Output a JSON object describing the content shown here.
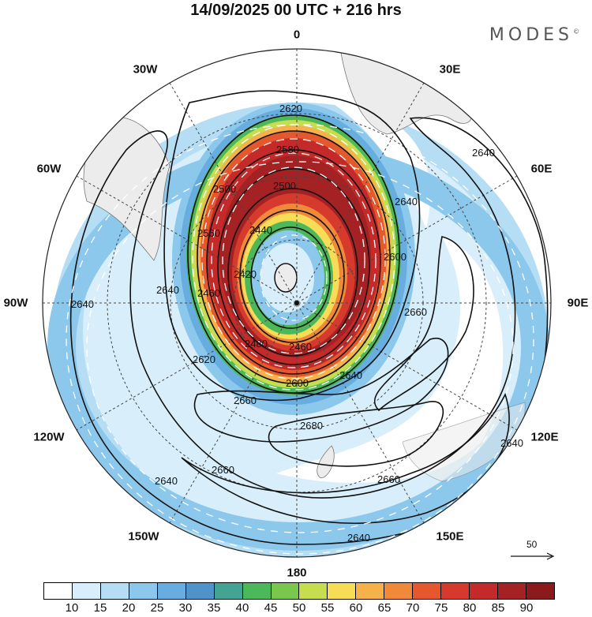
{
  "header": {
    "title": "14/09/2025  00 UTC  + 216 hrs",
    "brand": "MODES",
    "brand_mark": "©"
  },
  "longitude_labels": {
    "top": "0",
    "top_right": "30E",
    "right_upper": "60E",
    "right": "90E",
    "right_lower": "120E",
    "bottom_right": "150E",
    "bottom": "180",
    "bottom_left": "150W",
    "left_lower": "120W",
    "left": "90W",
    "left_upper": "60W",
    "top_left": "30W"
  },
  "contour_labels": [
    "2420",
    "2440",
    "2460",
    "2480",
    "2500",
    "2560",
    "2580",
    "2600",
    "2620",
    "2640",
    "2660",
    "2680"
  ],
  "colorbar": {
    "ticks": [
      "10",
      "15",
      "20",
      "25",
      "30",
      "35",
      "40",
      "45",
      "50",
      "55",
      "60",
      "65",
      "70",
      "75",
      "80",
      "85",
      "90"
    ],
    "colors": [
      "#ffffff",
      "#d8effb",
      "#b5def5",
      "#8cc8ec",
      "#67addf",
      "#4f93ca",
      "#45a394",
      "#4db85a",
      "#79c74c",
      "#c5dd4f",
      "#f7dd55",
      "#f6b14a",
      "#f08a3a",
      "#e5582e",
      "#d53a2c",
      "#c42a2a",
      "#a52224",
      "#8b1a1c"
    ]
  },
  "reference_vector": {
    "label": "50"
  },
  "colors": {
    "land": "#ececec",
    "contour": "#111111",
    "grid": "#444444",
    "wind_arrow": "#ffffff"
  }
}
